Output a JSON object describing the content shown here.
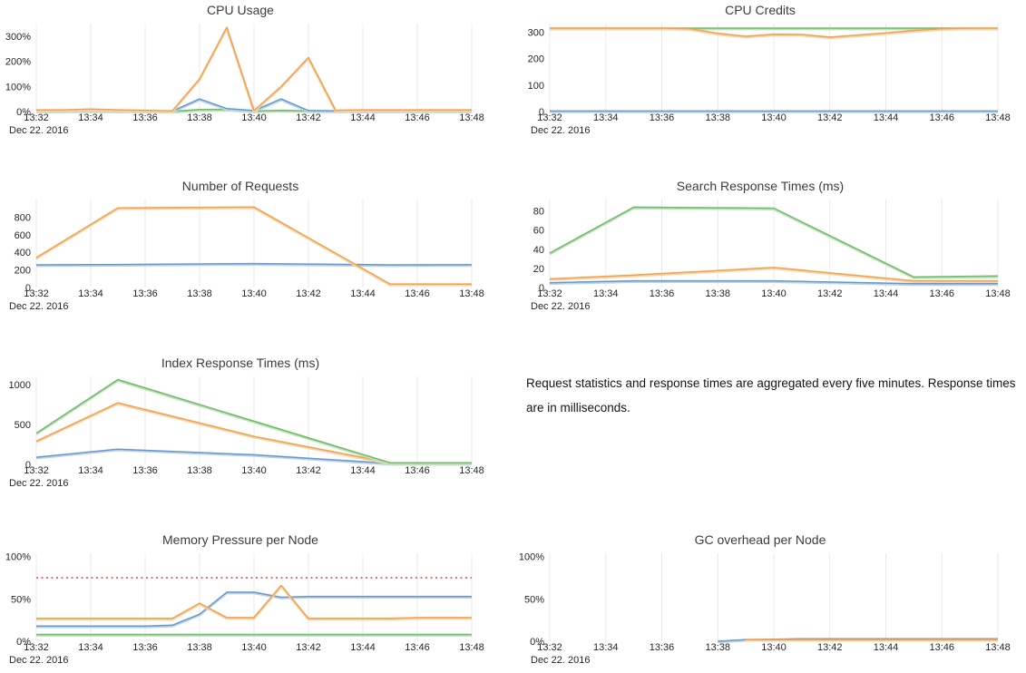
{
  "page": {
    "date_label": "Dec 22. 2016"
  },
  "note": {
    "text": "Request statistics and response times are aggregated every five minutes. Response times are in milliseconds."
  },
  "x_axis": {
    "start_minute": 32,
    "end_minute": 48,
    "tick_labels": [
      "13:32",
      "13:34",
      "13:36",
      "13:38",
      "13:40",
      "13:42",
      "13:44",
      "13:46",
      "13:48"
    ]
  },
  "colors": {
    "blue": "#6698cb",
    "orange": "#f0a150",
    "green": "#6fb96a",
    "red": "#e57373",
    "grid": "#e8e8e8",
    "blue_light": "#bcd3ea",
    "orange_light": "#f8d2a5",
    "green_light": "#bce2b6"
  },
  "chart_data": [
    {
      "id": "cpu-usage",
      "type": "line",
      "title": "CPU Usage",
      "row": 0,
      "col": 0,
      "ylim": [
        0,
        350
      ],
      "yticks": [
        {
          "value": 0,
          "label": "0%"
        },
        {
          "value": 100,
          "label": "100%"
        },
        {
          "value": 200,
          "label": "200%"
        },
        {
          "value": 300,
          "label": "300%"
        }
      ],
      "series": [
        {
          "name": "green-series",
          "color": "green",
          "x": [
            32,
            33,
            34,
            35,
            36,
            37,
            38,
            39,
            40,
            41,
            42,
            43,
            44,
            45,
            46,
            47,
            48
          ],
          "y": [
            2,
            2,
            3,
            2,
            2,
            1,
            8,
            9,
            2,
            5,
            3,
            2,
            2,
            2,
            2,
            2,
            2
          ]
        },
        {
          "name": "blue-series",
          "color": "blue",
          "x": [
            32,
            33,
            34,
            35,
            36,
            37,
            38,
            39,
            40,
            41,
            42,
            43,
            44,
            45,
            46,
            47,
            48
          ],
          "y": [
            4,
            4,
            5,
            4,
            3,
            2,
            50,
            12,
            4,
            50,
            4,
            3,
            3,
            3,
            4,
            4,
            4
          ]
        },
        {
          "name": "orange-series",
          "color": "orange",
          "x": [
            32,
            33,
            34,
            35,
            36,
            37,
            38,
            39,
            40,
            41,
            42,
            43,
            44,
            45,
            46,
            47,
            48
          ],
          "y": [
            7,
            7,
            10,
            7,
            5,
            3,
            130,
            335,
            4,
            100,
            215,
            5,
            7,
            7,
            7,
            7,
            7
          ]
        }
      ]
    },
    {
      "id": "cpu-credits",
      "type": "line",
      "title": "CPU Credits",
      "row": 0,
      "col": 1,
      "ylim": [
        0,
        332
      ],
      "yticks": [
        {
          "value": 0,
          "label": "0"
        },
        {
          "value": 100,
          "label": "100"
        },
        {
          "value": 200,
          "label": "200"
        },
        {
          "value": 300,
          "label": "300"
        }
      ],
      "series": [
        {
          "name": "blue-series",
          "color": "blue",
          "x": [
            32,
            33,
            34,
            35,
            36,
            37,
            38,
            39,
            40,
            41,
            42,
            43,
            44,
            45,
            46,
            47,
            48
          ],
          "y": [
            2,
            2,
            2,
            2,
            2,
            2,
            2,
            2,
            2,
            2,
            2,
            2,
            2,
            2,
            2,
            2,
            2
          ]
        },
        {
          "name": "green-series",
          "color": "green",
          "x": [
            32,
            33,
            34,
            35,
            36,
            37,
            38,
            39,
            40,
            41,
            42,
            43,
            44,
            45,
            46,
            47,
            48
          ],
          "y": [
            315,
            315,
            315,
            315,
            315,
            315,
            315,
            315,
            315,
            315,
            315,
            315,
            315,
            315,
            315,
            315,
            315
          ]
        },
        {
          "name": "orange-series",
          "color": "orange",
          "x": [
            32,
            33,
            34,
            35,
            36,
            37,
            38,
            39,
            40,
            41,
            42,
            43,
            44,
            45,
            46,
            47,
            48
          ],
          "y": [
            315,
            315,
            315,
            315,
            315,
            313,
            295,
            284,
            292,
            291,
            281,
            289,
            297,
            306,
            313,
            315,
            315
          ]
        }
      ]
    },
    {
      "id": "number-of-requests",
      "type": "line",
      "title": "Number of Requests",
      "row": 1,
      "col": 0,
      "ylim": [
        0,
        1000
      ],
      "yticks": [
        {
          "value": 0,
          "label": "0"
        },
        {
          "value": 200,
          "label": "200"
        },
        {
          "value": 400,
          "label": "400"
        },
        {
          "value": 600,
          "label": "600"
        },
        {
          "value": 800,
          "label": "800"
        }
      ],
      "series": [
        {
          "name": "blue-series",
          "color": "blue",
          "x": [
            32,
            35,
            40,
            45,
            48
          ],
          "y": [
            258,
            262,
            272,
            258,
            260
          ]
        },
        {
          "name": "orange-series",
          "color": "orange",
          "x": [
            32,
            35,
            40,
            45,
            48
          ],
          "y": [
            340,
            905,
            915,
            40,
            40
          ]
        }
      ]
    },
    {
      "id": "search-response-times",
      "type": "line",
      "title": "Search Response Times (ms)",
      "row": 1,
      "col": 1,
      "ylim": [
        0,
        92
      ],
      "yticks": [
        {
          "value": 0,
          "label": "0"
        },
        {
          "value": 20,
          "label": "20"
        },
        {
          "value": 40,
          "label": "40"
        },
        {
          "value": 60,
          "label": "60"
        },
        {
          "value": 80,
          "label": "80"
        }
      ],
      "series": [
        {
          "name": "blue-series",
          "color": "blue",
          "x": [
            32,
            35,
            40,
            45,
            48
          ],
          "y": [
            5,
            7,
            7,
            4,
            4
          ]
        },
        {
          "name": "orange-series",
          "color": "orange",
          "x": [
            32,
            35,
            40,
            45,
            48
          ],
          "y": [
            9,
            13,
            21,
            7,
            7
          ]
        },
        {
          "name": "green-series",
          "color": "green",
          "x": [
            32,
            35,
            40,
            45,
            48
          ],
          "y": [
            36,
            84,
            83,
            11,
            12
          ]
        }
      ]
    },
    {
      "id": "index-response-times",
      "type": "line",
      "title": "Index Response Times (ms)",
      "row": 2,
      "col": 0,
      "ylim": [
        0,
        1100
      ],
      "yticks": [
        {
          "value": 0,
          "label": "0"
        },
        {
          "value": 500,
          "label": "500"
        },
        {
          "value": 1000,
          "label": "1000"
        }
      ],
      "series": [
        {
          "name": "blue-series",
          "color": "blue",
          "x": [
            32,
            35,
            40,
            45,
            48
          ],
          "y": [
            90,
            190,
            120,
            12,
            12
          ]
        },
        {
          "name": "orange-series",
          "color": "orange",
          "x": [
            32,
            35,
            40,
            45,
            48
          ],
          "y": [
            290,
            770,
            350,
            20,
            20
          ]
        },
        {
          "name": "green-series",
          "color": "green",
          "x": [
            32,
            35,
            40,
            45,
            48
          ],
          "y": [
            390,
            1060,
            540,
            20,
            20
          ]
        }
      ]
    },
    {
      "id": "memory-pressure-per-node",
      "type": "line",
      "title": "Memory Pressure per Node",
      "row": 3,
      "col": 0,
      "ylim": [
        0,
        104
      ],
      "yticks": [
        {
          "value": 0,
          "label": "0%"
        },
        {
          "value": 50,
          "label": "50%"
        },
        {
          "value": 100,
          "label": "100%"
        }
      ],
      "threshold": {
        "value": 75,
        "color": "red",
        "style": "dotted"
      },
      "series": [
        {
          "name": "green-series",
          "color": "green",
          "x": [
            32,
            33,
            34,
            35,
            36,
            37,
            38,
            39,
            40,
            41,
            42,
            43,
            44,
            45,
            46,
            47,
            48
          ],
          "y": [
            8,
            8,
            8,
            8,
            8,
            8,
            8,
            8,
            8,
            8,
            8,
            8,
            8,
            8,
            8,
            8,
            8
          ]
        },
        {
          "name": "blue-series",
          "color": "blue",
          "x": [
            32,
            33,
            34,
            35,
            36,
            37,
            38,
            39,
            40,
            41,
            42,
            43,
            44,
            45,
            46,
            47,
            48
          ],
          "y": [
            18,
            18,
            18,
            18,
            18,
            19,
            32,
            58,
            58,
            52,
            53,
            53,
            53,
            53,
            53,
            53,
            53
          ]
        },
        {
          "name": "orange-series",
          "color": "orange",
          "x": [
            32,
            33,
            34,
            35,
            36,
            37,
            38,
            39,
            40,
            41,
            42,
            43,
            44,
            45,
            46,
            47,
            48
          ],
          "y": [
            27,
            27,
            27,
            27,
            27,
            27,
            45,
            28,
            28,
            66,
            27,
            27,
            27,
            27,
            28,
            28,
            28
          ]
        }
      ]
    },
    {
      "id": "gc-overhead-per-node",
      "type": "line",
      "title": "GC overhead per Node",
      "row": 3,
      "col": 1,
      "ylim": [
        0,
        104
      ],
      "yticks": [
        {
          "value": 0,
          "label": "0%"
        },
        {
          "value": 50,
          "label": "50%"
        },
        {
          "value": 100,
          "label": "100%"
        }
      ],
      "series": [
        {
          "name": "blue-series",
          "color": "blue",
          "x": [
            38,
            39,
            40,
            41,
            42,
            43,
            44,
            45,
            46,
            47,
            48
          ],
          "y": [
            0,
            2,
            2.5,
            3,
            3,
            3,
            3,
            3,
            3,
            3,
            3
          ]
        },
        {
          "name": "orange-series",
          "color": "orange",
          "x": [
            39,
            40,
            41,
            42,
            43,
            44,
            45,
            46,
            47,
            48
          ],
          "y": [
            2,
            2,
            2,
            2,
            2,
            2,
            2,
            2,
            2,
            2
          ]
        }
      ]
    }
  ]
}
